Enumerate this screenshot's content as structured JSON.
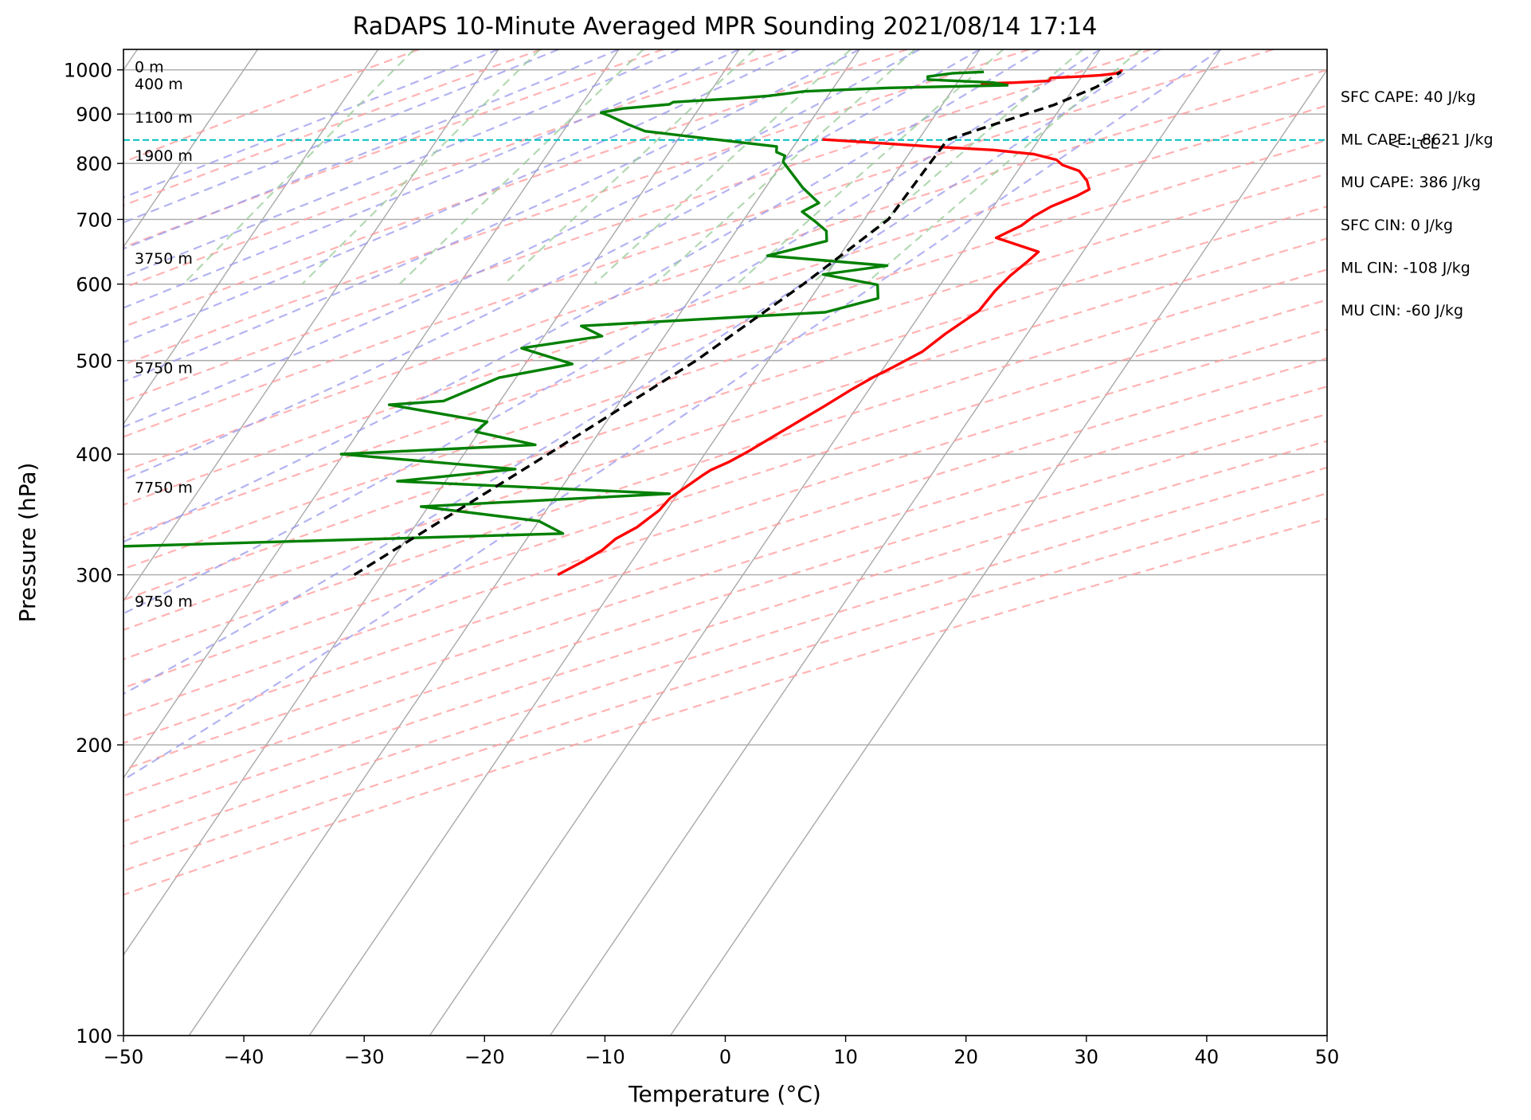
{
  "chart_data": {
    "type": "line",
    "subtype": "skew-t log-p",
    "title": "RaDAPS 10-Minute Averaged MPR Sounding 2021/08/14 17:14",
    "xlabel": "Temperature (°C)",
    "ylabel": "Pressure (hPa)",
    "xlim": [
      -50,
      50
    ],
    "ylim": [
      1050,
      100
    ],
    "y_scale": "log",
    "x_ticks": [
      "−50",
      "−40",
      "−30",
      "−20",
      "−10",
      "0",
      "10",
      "20",
      "30",
      "40",
      "50"
    ],
    "y_ticks": [
      "100",
      "200",
      "300",
      "400",
      "500",
      "600",
      "700",
      "800",
      "900",
      "1000"
    ],
    "grid": true,
    "series": [
      {
        "color": "#ff0000",
        "points": [
          [
            14.6,
            300
          ],
          [
            16.0,
            310
          ],
          [
            16.9,
            318
          ],
          [
            17.4,
            327
          ],
          [
            18.5,
            336
          ],
          [
            19.4,
            350
          ],
          [
            19.6,
            360
          ],
          [
            20.1,
            367
          ],
          [
            21.0,
            380
          ],
          [
            21.4,
            385
          ],
          [
            22.5,
            393
          ],
          [
            23.5,
            403
          ],
          [
            25.1,
            422
          ],
          [
            27.2,
            448
          ],
          [
            28.5,
            466
          ],
          [
            29.7,
            481
          ],
          [
            30.8,
            493
          ],
          [
            32.3,
            511
          ],
          [
            33.2,
            533
          ],
          [
            34.7,
            563
          ],
          [
            34.9,
            590
          ],
          [
            35.3,
            612
          ],
          [
            35.9,
            632
          ],
          [
            36.3,
            648
          ],
          [
            32.0,
            670
          ],
          [
            33.4,
            690
          ],
          [
            33.9,
            705
          ],
          [
            34.8,
            722
          ],
          [
            36.3,
            740
          ],
          [
            37.0,
            752
          ],
          [
            36.3,
            768
          ],
          [
            35.1,
            786
          ],
          [
            33.4,
            797
          ],
          [
            32.6,
            807
          ],
          [
            30.4,
            818
          ],
          [
            26.8,
            826
          ],
          [
            21.4,
            833
          ],
          [
            14.8,
            843
          ],
          [
            12.0,
            847
          ]
        ],
        "points_lower": [
          [
            22.0,
            968
          ],
          [
            24.8,
            970
          ],
          [
            27.5,
            974
          ],
          [
            27.5,
            981
          ],
          [
            29.7,
            984
          ],
          [
            31.4,
            987
          ],
          [
            32.6,
            991
          ],
          [
            32.9,
            995
          ],
          [
            33.0,
            1000
          ]
        ]
      },
      {
        "color": "#008000",
        "points": [
          [
            -30.2,
            300
          ],
          [
            -25.0,
            311
          ],
          [
            -23.5,
            321
          ],
          [
            12.7,
            331
          ],
          [
            10.0,
            341
          ],
          [
            -0.6,
            353
          ],
          [
            19.3,
            364
          ],
          [
            -4.0,
            375
          ],
          [
            5.1,
            386
          ],
          [
            -10.2,
            400
          ],
          [
            5.4,
            409
          ],
          [
            -0.3,
            422
          ],
          [
            0.1,
            432
          ],
          [
            -9.0,
            450
          ],
          [
            -4.7,
            454
          ],
          [
            -1.4,
            480
          ],
          [
            3.9,
            496
          ],
          [
            -1.2,
            515
          ],
          [
            4.8,
            530
          ],
          [
            2.5,
            543
          ],
          [
            22.0,
            561
          ],
          [
            25.6,
            580
          ],
          [
            24.8,
            599
          ],
          [
            19.7,
            614
          ],
          [
            24.5,
            627
          ],
          [
            14.0,
            642
          ],
          [
            18.1,
            665
          ],
          [
            17.5,
            681
          ],
          [
            16.0,
            697
          ],
          [
            14.4,
            713
          ],
          [
            15.3,
            728
          ],
          [
            13.1,
            755
          ],
          [
            10.0,
            803
          ],
          [
            9.8,
            815
          ],
          [
            8.9,
            822
          ],
          [
            8.6,
            833
          ],
          [
            3.1,
            847
          ],
          [
            -3.2,
            864
          ],
          [
            -5.0,
            878
          ],
          [
            -7.0,
            896
          ],
          [
            -7.9,
            903
          ],
          [
            -6.3,
            912
          ],
          [
            -2.7,
            921
          ],
          [
            -2.5,
            926
          ],
          [
            2.5,
            934
          ],
          [
            5.1,
            940
          ],
          [
            7.8,
            950
          ],
          [
            14.6,
            958
          ],
          [
            24.3,
            964
          ],
          [
            23.0,
            970
          ],
          [
            17.4,
            977
          ],
          [
            17.2,
            984
          ],
          [
            19.1,
            992
          ],
          [
            21.6,
            995
          ]
        ]
      },
      {
        "color": "#000000",
        "style": "dashed",
        "points": [
          [
            -2.3,
            300
          ],
          [
            7.0,
            400
          ],
          [
            14.0,
            500
          ],
          [
            18.6,
            600
          ],
          [
            22.0,
            700
          ],
          [
            22.4,
            846
          ],
          [
            25.6,
            880
          ],
          [
            29.3,
            920
          ],
          [
            31.8,
            960
          ],
          [
            33.0,
            995
          ]
        ]
      }
    ],
    "height_labels": [
      {
        "text": "9750 m",
        "p": 278
      },
      {
        "text": "7750 m",
        "p": 365
      },
      {
        "text": "5750 m",
        "p": 485
      },
      {
        "text": "3750 m",
        "p": 630
      },
      {
        "text": "1900 m",
        "p": 805
      },
      {
        "text": "1100 m",
        "p": 882
      },
      {
        "text": "400 m",
        "p": 955
      },
      {
        "text": "0 m",
        "p": 995
      }
    ],
    "lcl": {
      "p": 846,
      "label": "<--LCL",
      "color": "#00bfbf"
    },
    "stats": [
      "SFC CAPE: 40 J/kg",
      "ML CAPE: -8621 J/kg",
      "MU CAPE: 386 J/kg",
      "SFC CIN: 0 J/kg",
      "ML CIN: -108 J/kg",
      "MU CIN: -60 J/kg"
    ],
    "reference_lines": {
      "isotherm_color": "#a9a9a9",
      "dry_adiabat_color": "#ff9999",
      "moist_adiabat_color": "#9999ee",
      "mixing_ratio_color": "#99cc99"
    }
  }
}
